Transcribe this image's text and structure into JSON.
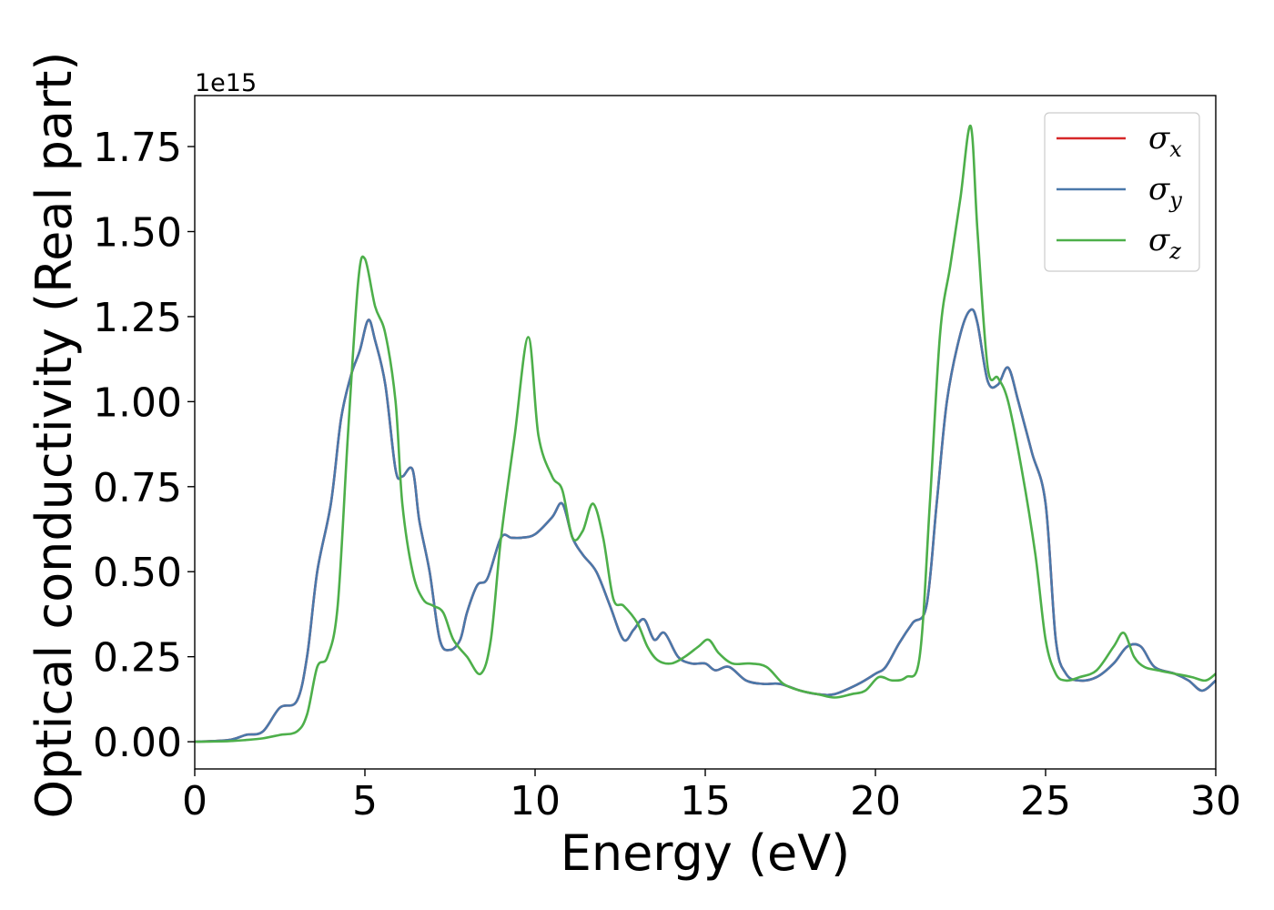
{
  "chart_data": {
    "type": "line",
    "title": "",
    "xlabel": "Energy (eV)",
    "ylabel": "Optical conductivity (Real part)",
    "y_offset_label": "1e15",
    "y_scale_factor": 1000000000000000.0,
    "xlim": [
      0,
      30
    ],
    "ylim": [
      -0.08,
      1.9
    ],
    "x_ticks": [
      0,
      5,
      10,
      15,
      20,
      25,
      30
    ],
    "y_ticks": [
      0.0,
      0.25,
      0.5,
      0.75,
      1.0,
      1.25,
      1.5,
      1.75
    ],
    "y_tick_labels": [
      "0.00",
      "0.25",
      "0.50",
      "0.75",
      "1.00",
      "1.25",
      "1.50",
      "1.75"
    ],
    "grid": false,
    "legend_position": "top-right",
    "series": [
      {
        "name": "σ",
        "subscript": "x",
        "color": "#d62728",
        "x": [
          0,
          1,
          1.5,
          2,
          2.5,
          3,
          3.3,
          3.6,
          4,
          4.3,
          4.6,
          4.85,
          5.1,
          5.3,
          5.6,
          5.9,
          6.1,
          6.4,
          6.6,
          6.9,
          7.2,
          7.5,
          7.8,
          8,
          8.3,
          8.6,
          9,
          9.3,
          9.6,
          10,
          10.5,
          10.8,
          11.1,
          11.4,
          11.8,
          12.2,
          12.6,
          12.9,
          13.2,
          13.5,
          13.8,
          14.2,
          14.6,
          15,
          15.3,
          15.7,
          16.2,
          16.7,
          17.2,
          17.8,
          18.3,
          18.8,
          19.5,
          20,
          20.3,
          20.7,
          21.1,
          21.5,
          21.8,
          22.1,
          22.5,
          22.8,
          23,
          23.3,
          23.6,
          23.9,
          24.2,
          24.6,
          25,
          25.3,
          25.6,
          26,
          26.5,
          27,
          27.4,
          27.8,
          28.2,
          28.8,
          29.2,
          29.6,
          30
        ],
        "y": [
          0,
          0.005,
          0.02,
          0.03,
          0.1,
          0.12,
          0.25,
          0.5,
          0.7,
          0.95,
          1.08,
          1.15,
          1.24,
          1.18,
          1.05,
          0.8,
          0.78,
          0.8,
          0.65,
          0.5,
          0.3,
          0.27,
          0.3,
          0.38,
          0.46,
          0.48,
          0.6,
          0.6,
          0.6,
          0.61,
          0.66,
          0.7,
          0.6,
          0.55,
          0.5,
          0.4,
          0.3,
          0.33,
          0.36,
          0.3,
          0.32,
          0.25,
          0.23,
          0.23,
          0.21,
          0.22,
          0.18,
          0.17,
          0.17,
          0.15,
          0.14,
          0.14,
          0.17,
          0.2,
          0.22,
          0.29,
          0.35,
          0.4,
          0.7,
          1.0,
          1.2,
          1.27,
          1.23,
          1.06,
          1.05,
          1.1,
          1.0,
          0.85,
          0.7,
          0.3,
          0.2,
          0.18,
          0.19,
          0.23,
          0.28,
          0.28,
          0.22,
          0.2,
          0.18,
          0.15,
          0.18
        ]
      },
      {
        "name": "σ",
        "subscript": "y",
        "color": "#4a78aa",
        "x": [
          0,
          1,
          1.5,
          2,
          2.5,
          3,
          3.3,
          3.6,
          4,
          4.3,
          4.6,
          4.85,
          5.1,
          5.3,
          5.6,
          5.9,
          6.1,
          6.4,
          6.6,
          6.9,
          7.2,
          7.5,
          7.8,
          8,
          8.3,
          8.6,
          9,
          9.3,
          9.6,
          10,
          10.5,
          10.8,
          11.1,
          11.4,
          11.8,
          12.2,
          12.6,
          12.9,
          13.2,
          13.5,
          13.8,
          14.2,
          14.6,
          15,
          15.3,
          15.7,
          16.2,
          16.7,
          17.2,
          17.8,
          18.3,
          18.8,
          19.5,
          20,
          20.3,
          20.7,
          21.1,
          21.5,
          21.8,
          22.1,
          22.5,
          22.8,
          23,
          23.3,
          23.6,
          23.9,
          24.2,
          24.6,
          25,
          25.3,
          25.6,
          26,
          26.5,
          27,
          27.4,
          27.8,
          28.2,
          28.8,
          29.2,
          29.6,
          30
        ],
        "y": [
          0,
          0.005,
          0.02,
          0.03,
          0.1,
          0.12,
          0.25,
          0.5,
          0.7,
          0.95,
          1.08,
          1.15,
          1.24,
          1.18,
          1.05,
          0.8,
          0.78,
          0.8,
          0.65,
          0.5,
          0.3,
          0.27,
          0.3,
          0.38,
          0.46,
          0.48,
          0.6,
          0.6,
          0.6,
          0.61,
          0.66,
          0.7,
          0.6,
          0.55,
          0.5,
          0.4,
          0.3,
          0.33,
          0.36,
          0.3,
          0.32,
          0.25,
          0.23,
          0.23,
          0.21,
          0.22,
          0.18,
          0.17,
          0.17,
          0.15,
          0.14,
          0.14,
          0.17,
          0.2,
          0.22,
          0.29,
          0.35,
          0.4,
          0.7,
          1.0,
          1.2,
          1.27,
          1.23,
          1.06,
          1.05,
          1.1,
          1.0,
          0.85,
          0.7,
          0.3,
          0.2,
          0.18,
          0.19,
          0.23,
          0.28,
          0.28,
          0.22,
          0.2,
          0.18,
          0.15,
          0.18
        ]
      },
      {
        "name": "σ",
        "subscript": "z",
        "color": "#4daf4a",
        "x": [
          0,
          1,
          1.5,
          2,
          2.5,
          3,
          3.3,
          3.6,
          3.9,
          4.2,
          4.5,
          4.8,
          5,
          5.3,
          5.6,
          5.9,
          6.1,
          6.4,
          6.7,
          7,
          7.3,
          7.6,
          8,
          8.4,
          8.7,
          9,
          9.4,
          9.8,
          10.1,
          10.5,
          10.8,
          11.1,
          11.4,
          11.7,
          12,
          12.3,
          12.6,
          13,
          13.3,
          13.6,
          14,
          14.4,
          14.8,
          15.1,
          15.4,
          15.8,
          16.3,
          16.8,
          17.3,
          17.8,
          18.3,
          18.8,
          19.3,
          19.7,
          20.1,
          20.5,
          20.9,
          21.3,
          21.6,
          21.9,
          22.2,
          22.5,
          22.8,
          23,
          23.3,
          23.6,
          23.9,
          24.3,
          24.7,
          25,
          25.3,
          25.6,
          26,
          26.5,
          27,
          27.3,
          27.6,
          27.9,
          28.3,
          28.8,
          29.3,
          29.7,
          30
        ],
        "y": [
          0,
          0.002,
          0.005,
          0.01,
          0.02,
          0.03,
          0.08,
          0.22,
          0.25,
          0.4,
          0.9,
          1.35,
          1.42,
          1.28,
          1.2,
          1.0,
          0.7,
          0.5,
          0.42,
          0.4,
          0.38,
          0.3,
          0.25,
          0.2,
          0.3,
          0.6,
          0.9,
          1.19,
          0.9,
          0.78,
          0.74,
          0.6,
          0.62,
          0.7,
          0.6,
          0.42,
          0.4,
          0.35,
          0.28,
          0.24,
          0.23,
          0.25,
          0.28,
          0.3,
          0.26,
          0.23,
          0.23,
          0.22,
          0.17,
          0.15,
          0.14,
          0.13,
          0.14,
          0.15,
          0.19,
          0.18,
          0.19,
          0.25,
          0.7,
          1.2,
          1.4,
          1.6,
          1.81,
          1.5,
          1.1,
          1.07,
          1.0,
          0.8,
          0.55,
          0.3,
          0.2,
          0.18,
          0.19,
          0.21,
          0.28,
          0.32,
          0.25,
          0.22,
          0.21,
          0.2,
          0.19,
          0.18,
          0.2
        ]
      }
    ]
  }
}
